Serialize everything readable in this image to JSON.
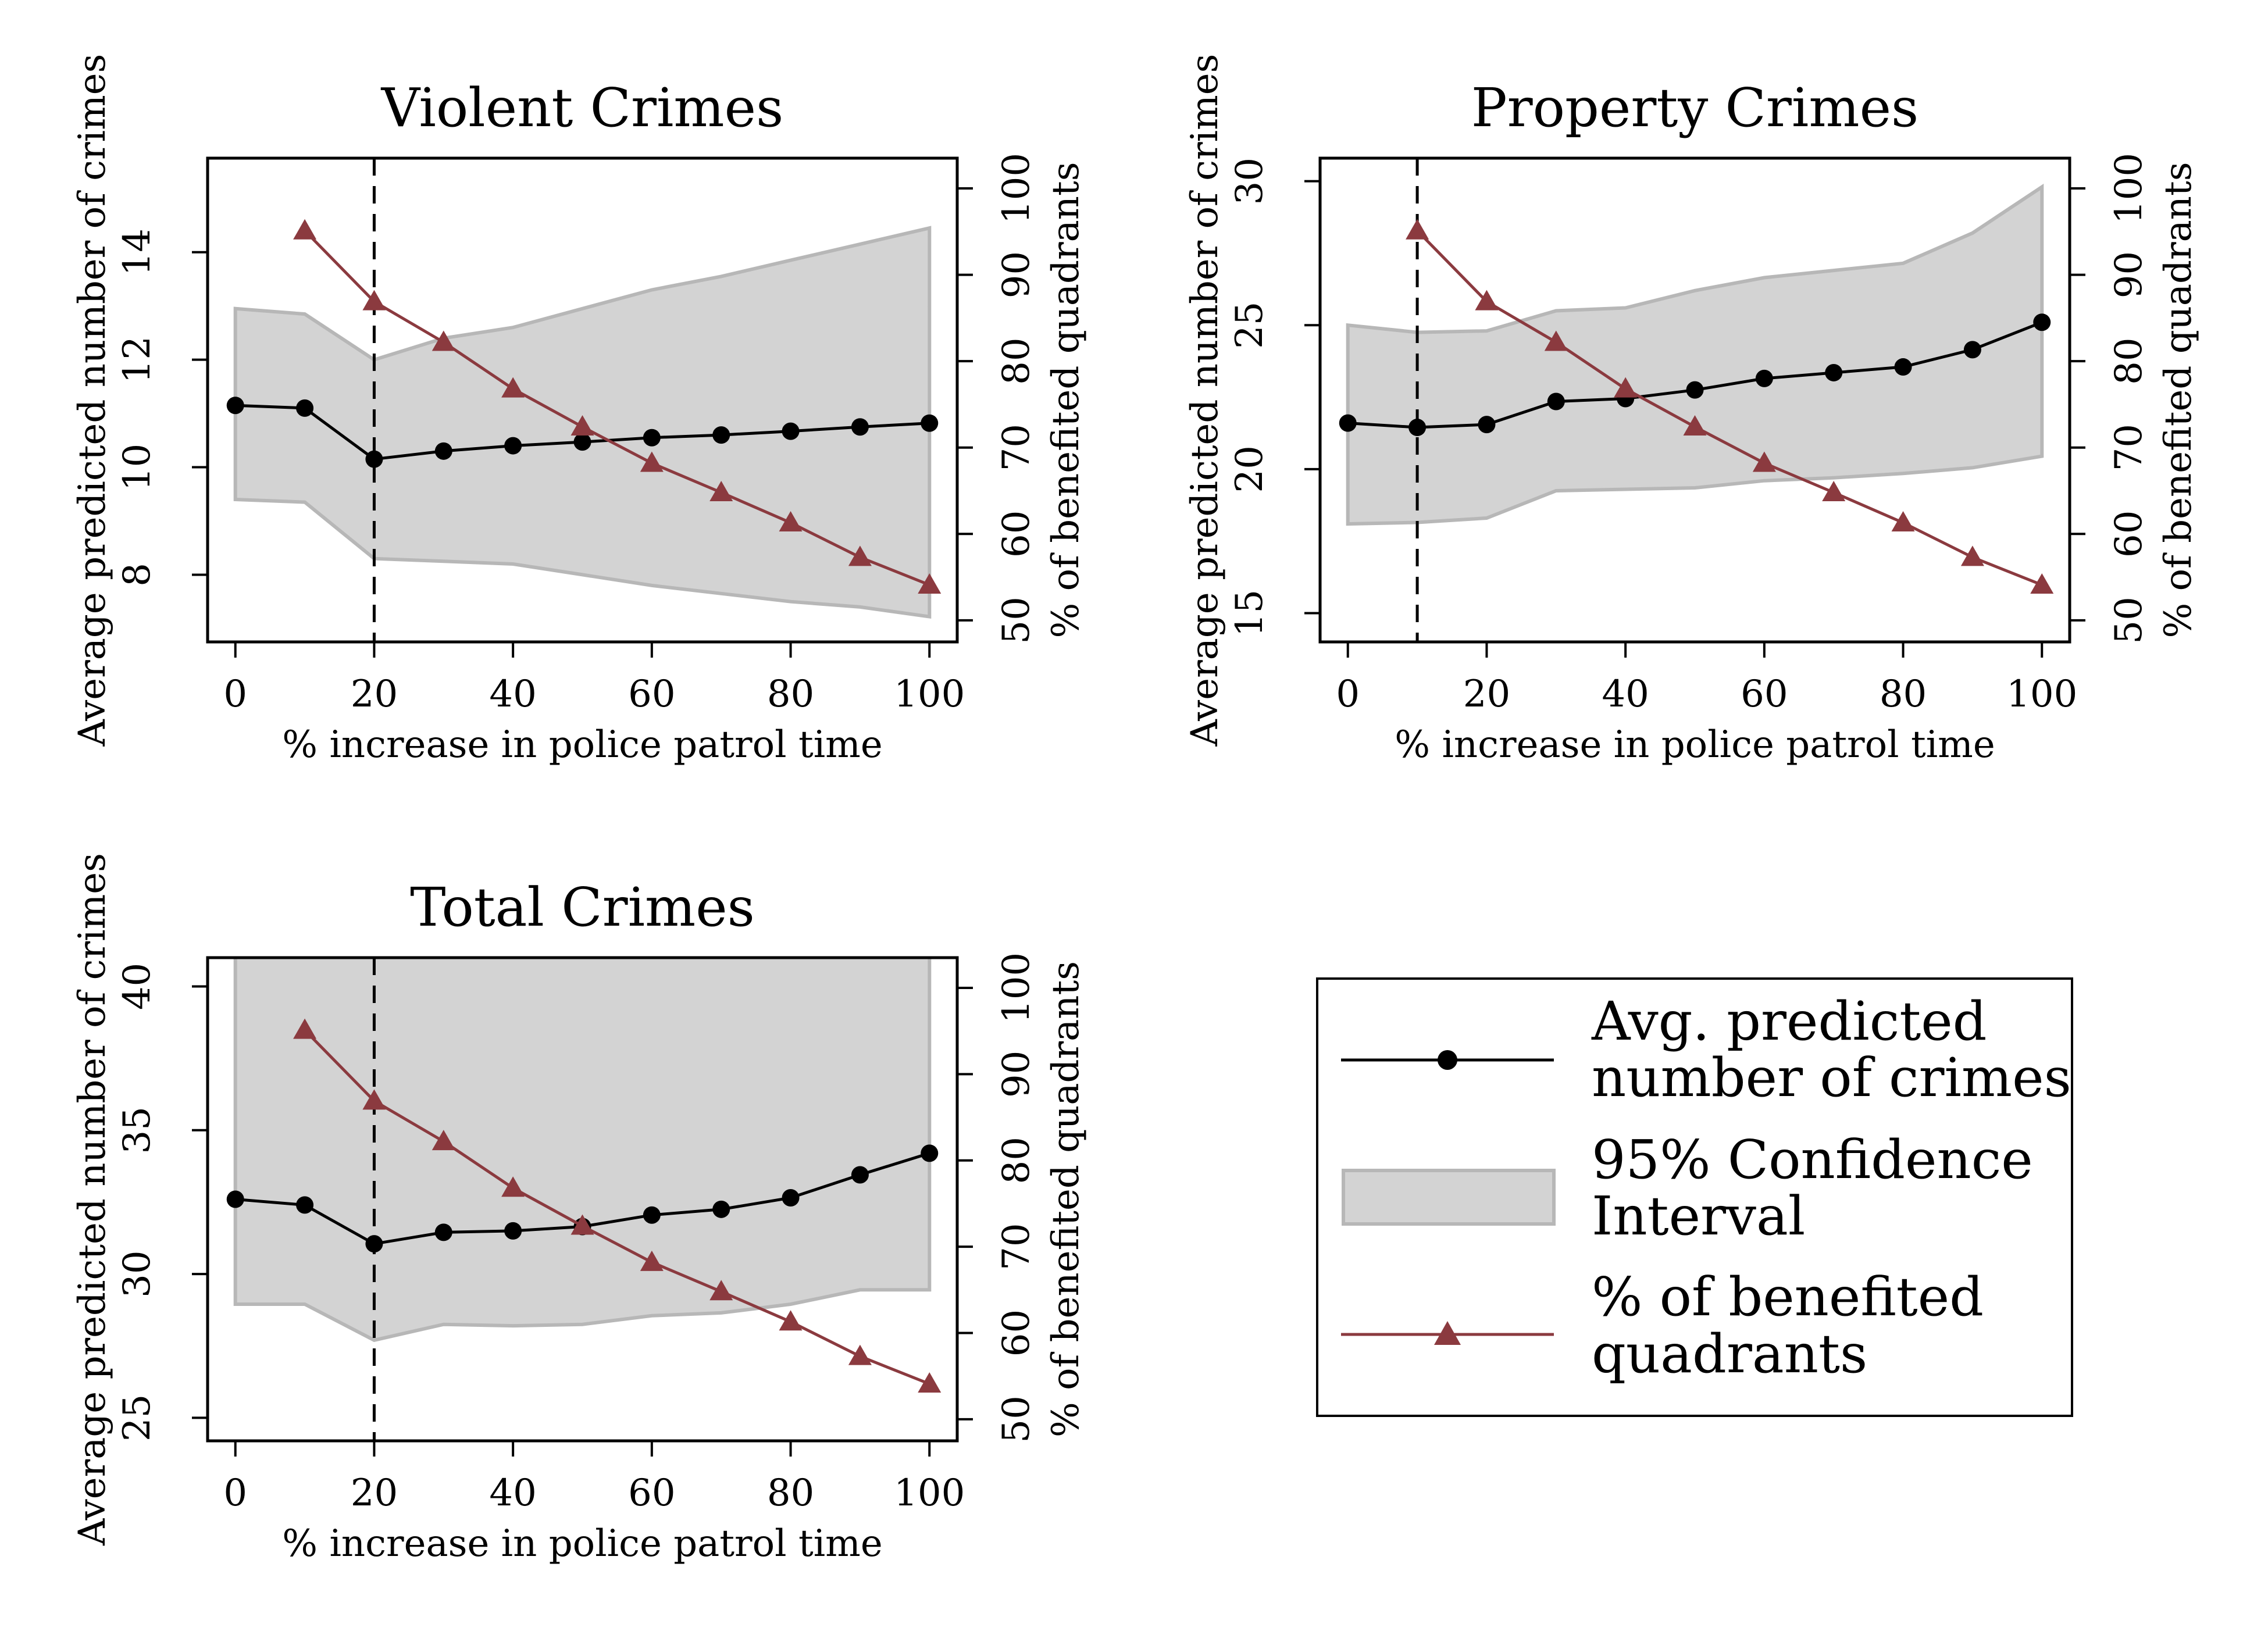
{
  "colors": {
    "predicted": "#000000",
    "benefited": "#8b3a3f",
    "ci_fill": "#d3d3d3",
    "ci_edge": "#b7b7b7",
    "cutoff": "#000000"
  },
  "legend": {
    "placement": "bottom-right",
    "items": [
      {
        "line1": "Avg. predicted",
        "line2": "number of crimes",
        "marker": "circle"
      },
      {
        "line1": "95% Confidence",
        "line2": "Interval",
        "marker": "band"
      },
      {
        "line1": "% of benefited",
        "line2": "quadrants",
        "marker": "triangle"
      }
    ]
  },
  "chart_data": [
    {
      "type": "line",
      "title": "Violent Crimes",
      "xlabel": "% increase in police patrol time",
      "ylabel": "Average predicted number of crimes",
      "y2label": "% of benefited quadrants",
      "xlim": [
        -4,
        104
      ],
      "ylim": [
        6.75,
        15.75
      ],
      "y2lim": [
        47.5,
        103.5
      ],
      "xticks": [
        0,
        20,
        40,
        60,
        80,
        100
      ],
      "yticks": [
        8,
        10,
        12,
        14
      ],
      "y2ticks": [
        50,
        60,
        70,
        80,
        90,
        100
      ],
      "cutoff_x": 20,
      "grid": false,
      "x": [
        0,
        10,
        20,
        30,
        40,
        50,
        60,
        70,
        80,
        90,
        100
      ],
      "series": [
        {
          "name": "Avg. predicted number of crimes",
          "axis": "left",
          "values": [
            11.15,
            11.1,
            10.15,
            10.3,
            10.4,
            10.47,
            10.55,
            10.6,
            10.67,
            10.75,
            10.82
          ]
        },
        {
          "name": "95% Confidence Interval",
          "axis": "left",
          "lower": [
            9.4,
            9.35,
            8.3,
            8.25,
            8.2,
            8.0,
            7.8,
            7.65,
            7.5,
            7.4,
            7.22
          ],
          "upper": [
            12.95,
            12.85,
            12.0,
            12.4,
            12.6,
            12.95,
            13.3,
            13.55,
            13.85,
            14.15,
            14.45
          ]
        },
        {
          "name": "% of benefited quadrants",
          "axis": "right",
          "x": [
            10,
            20,
            30,
            40,
            50,
            60,
            70,
            80,
            90,
            100
          ],
          "values": [
            95.1,
            86.9,
            82.2,
            76.8,
            72.4,
            68.2,
            64.8,
            61.3,
            57.3,
            54.1
          ]
        }
      ]
    },
    {
      "type": "line",
      "title": "Property Crimes",
      "xlabel": "% increase in police patrol time",
      "ylabel": "Average predicted number of crimes",
      "y2label": "% of benefited quadrants",
      "xlim": [
        -4,
        104
      ],
      "ylim": [
        14.0,
        30.8
      ],
      "y2lim": [
        47.5,
        103.5
      ],
      "xticks": [
        0,
        20,
        40,
        60,
        80,
        100
      ],
      "yticks": [
        15,
        20,
        25,
        30
      ],
      "y2ticks": [
        50,
        60,
        70,
        80,
        90,
        100
      ],
      "cutoff_x": 10,
      "grid": false,
      "x": [
        0,
        10,
        20,
        30,
        40,
        50,
        60,
        70,
        80,
        90,
        100
      ],
      "series": [
        {
          "name": "Avg. predicted number of crimes",
          "axis": "left",
          "values": [
            21.6,
            21.45,
            21.55,
            22.35,
            22.45,
            22.75,
            23.15,
            23.35,
            23.55,
            24.15,
            25.1
          ]
        },
        {
          "name": "95% Confidence Interval",
          "axis": "left",
          "lower": [
            18.1,
            18.15,
            18.3,
            19.25,
            19.3,
            19.35,
            19.6,
            19.7,
            19.85,
            20.05,
            20.45
          ],
          "upper": [
            25.0,
            24.75,
            24.8,
            25.5,
            25.6,
            26.2,
            26.65,
            26.9,
            27.15,
            28.2,
            29.8
          ]
        },
        {
          "name": "% of benefited quadrants",
          "axis": "right",
          "x": [
            10,
            20,
            30,
            40,
            50,
            60,
            70,
            80,
            90,
            100
          ],
          "values": [
            95.1,
            86.9,
            82.2,
            76.8,
            72.4,
            68.2,
            64.8,
            61.3,
            57.3,
            54.1
          ]
        }
      ]
    },
    {
      "type": "line",
      "title": "Total Crimes",
      "xlabel": "% increase in police patrol time",
      "ylabel": "Average predicted number of crimes",
      "y2label": "% of benefited quadrants",
      "xlim": [
        -4,
        104
      ],
      "ylim": [
        24.2,
        41.0
      ],
      "y2lim": [
        47.5,
        103.5
      ],
      "xticks": [
        0,
        20,
        40,
        60,
        80,
        100
      ],
      "yticks": [
        25,
        30,
        35,
        40
      ],
      "y2ticks": [
        50,
        60,
        70,
        80,
        90,
        100
      ],
      "cutoff_x": 20,
      "grid": false,
      "x": [
        0,
        10,
        20,
        30,
        40,
        50,
        60,
        70,
        80,
        90,
        100
      ],
      "series": [
        {
          "name": "Avg. predicted number of crimes",
          "axis": "left",
          "values": [
            32.6,
            32.4,
            31.05,
            31.45,
            31.5,
            31.65,
            32.05,
            32.25,
            32.65,
            33.45,
            34.2
          ]
        },
        {
          "name": "95% Confidence Interval",
          "axis": "left",
          "lower": [
            28.95,
            28.95,
            27.7,
            28.25,
            28.2,
            28.25,
            28.55,
            28.65,
            28.95,
            29.45,
            29.45
          ]
        },
        {
          "name": "% of benefited quadrants",
          "axis": "right",
          "x": [
            10,
            20,
            30,
            40,
            50,
            60,
            70,
            80,
            90,
            100
          ],
          "values": [
            95.1,
            86.9,
            82.2,
            76.8,
            72.4,
            68.2,
            64.8,
            61.3,
            57.3,
            54.1
          ]
        }
      ]
    }
  ]
}
